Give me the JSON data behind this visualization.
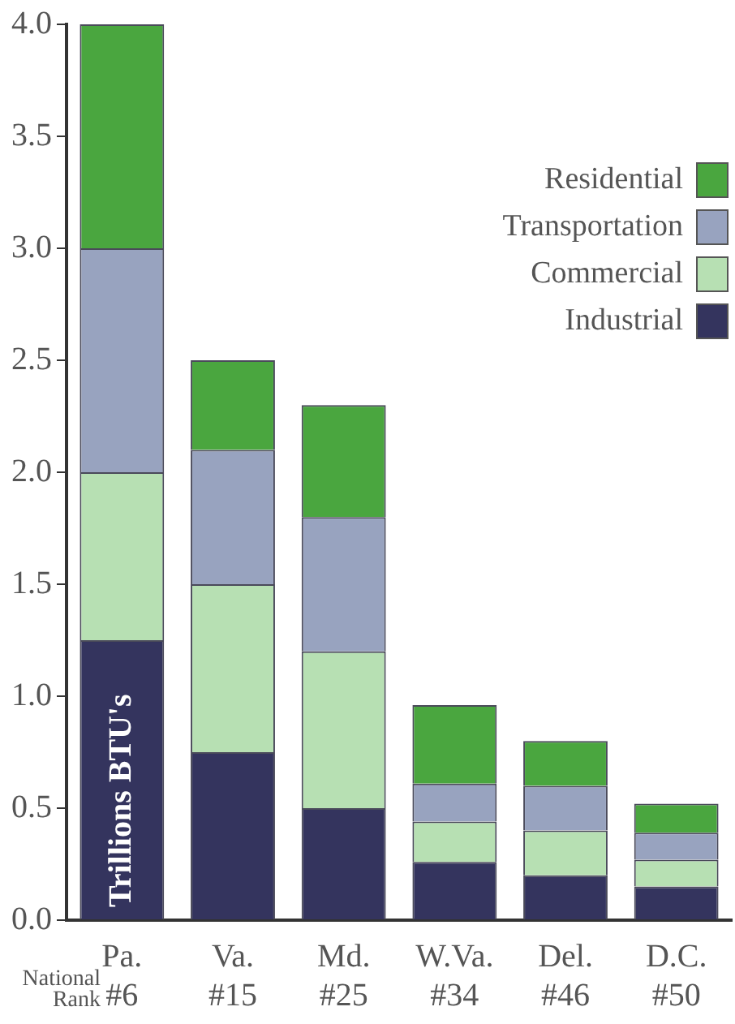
{
  "chart_data": {
    "type": "bar",
    "stacked": true,
    "ylabel": "Trillions BTU's",
    "categories": [
      "Pa.\n#6",
      "Va.\n#15",
      "Md.\n#25",
      "W.Va.\n#34",
      "Del.\n#46",
      "D.C.\n#50"
    ],
    "series": [
      {
        "name": "Industrial",
        "color": "#34345e",
        "values": [
          1.25,
          0.75,
          0.5,
          0.26,
          0.2,
          0.15
        ]
      },
      {
        "name": "Commercial",
        "color": "#b7e0b3",
        "values": [
          0.75,
          0.75,
          0.7,
          0.18,
          0.2,
          0.12
        ]
      },
      {
        "name": "Transportation",
        "color": "#98a3bf",
        "values": [
          1.0,
          0.6,
          0.6,
          0.17,
          0.2,
          0.12
        ]
      },
      {
        "name": "Residential",
        "color": "#4aa63f",
        "values": [
          1.0,
          0.4,
          0.5,
          0.35,
          0.2,
          0.13
        ]
      }
    ],
    "ylim": [
      0,
      4
    ],
    "yticks": [
      {
        "value": 0,
        "label": "0.0"
      },
      {
        "value": 0.5,
        "label": "0.5"
      },
      {
        "value": 1,
        "label": "1.0"
      },
      {
        "value": 1.5,
        "label": "1.5"
      },
      {
        "value": 2,
        "label": "2.0"
      },
      {
        "value": 2.5,
        "label": "2.5"
      },
      {
        "value": 3,
        "label": "3.0"
      },
      {
        "value": 3.5,
        "label": "3.5"
      },
      {
        "value": 4,
        "label": "4.0"
      }
    ],
    "grid": false,
    "legend": "right",
    "annotations": [
      "National Rank"
    ]
  }
}
